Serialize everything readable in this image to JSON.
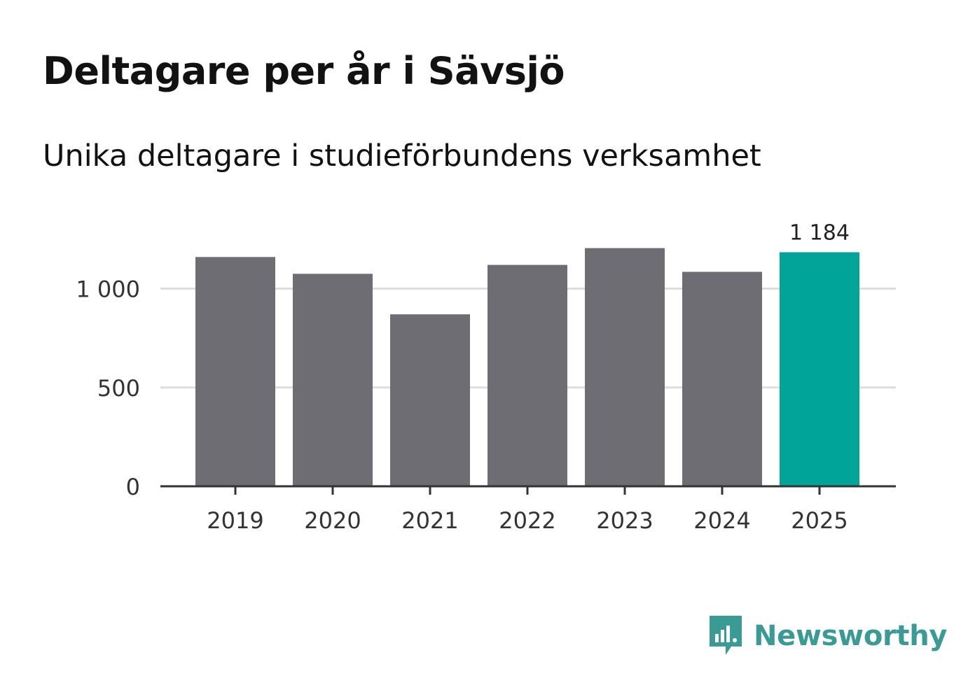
{
  "header": {
    "title": "Deltagare per år i Sävsjö",
    "subtitle": "Unika deltagare i studieförbundens verksamhet"
  },
  "brand": {
    "name": "Newsworthy",
    "icon": "newsworthy-logo-icon",
    "color": "#3a9a94"
  },
  "colors": {
    "bar": "#6e6d73",
    "highlight": "#00a499",
    "grid": "#dddddd",
    "axis": "#333333"
  },
  "chart_data": {
    "type": "bar",
    "title": "Deltagare per år i Sävsjö",
    "subtitle": "Unika deltagare i studieförbundens verksamhet",
    "xlabel": "",
    "ylabel": "",
    "categories": [
      "2019",
      "2020",
      "2021",
      "2022",
      "2023",
      "2024",
      "2025"
    ],
    "values": [
      1160,
      1075,
      870,
      1120,
      1205,
      1085,
      1184
    ],
    "highlight_index": 6,
    "data_labels": [
      {
        "index": 6,
        "text": "1 184"
      }
    ],
    "yticks": [
      0,
      500,
      1000
    ],
    "ytick_labels": [
      "0",
      "500",
      "1 000"
    ],
    "ylim": [
      0,
      1250
    ],
    "grid": true
  }
}
